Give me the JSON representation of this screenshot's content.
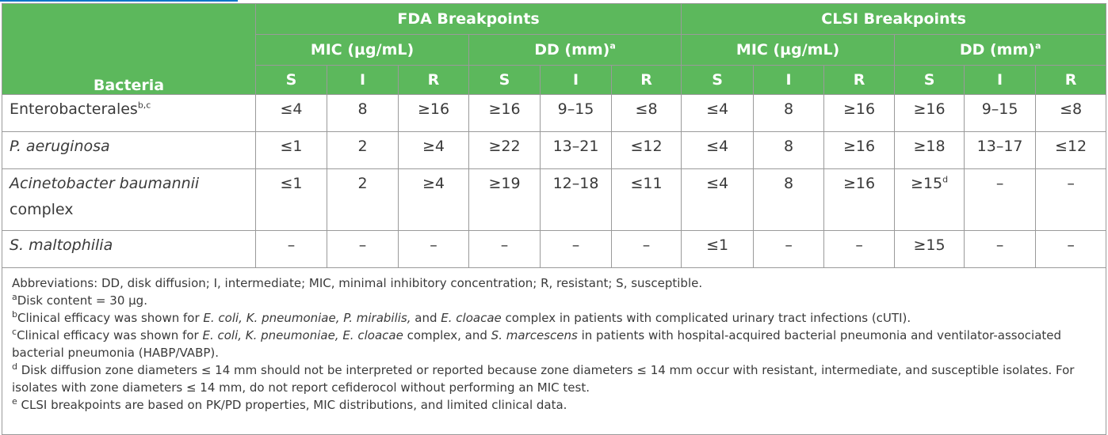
{
  "header": {
    "group_fda": "FDA Breakpoints",
    "group_clsi": "CLSI Breakpoints",
    "mic": "MIC (µg/mL)",
    "dd": "DD (mm)",
    "dd_sup": "a",
    "bacteria": "Bacteria",
    "s": "S",
    "i": "I",
    "r": "R"
  },
  "rows": [
    {
      "name": "Enterobacterales",
      "sup": "b,c",
      "vals": [
        "≤4",
        "8",
        "≥16",
        "≥16",
        "9–15",
        "≤8",
        "≤4",
        "8",
        "≥16",
        "≥16",
        "9–15",
        "≤8"
      ]
    },
    {
      "name": "P. aeruginosa",
      "vals": [
        "≤1",
        "2",
        "≥4",
        "≥22",
        "13–21",
        "≤12",
        "≤4",
        "8",
        "≥16",
        "≥18",
        "13–17",
        "≤12"
      ]
    },
    {
      "name": "Acinetobacter baumannii",
      "name2": "complex",
      "vals": [
        "≤1",
        "2",
        "≥4",
        "≥19",
        "12–18",
        "≤11",
        "≤4",
        "8",
        "≥16",
        "≥15",
        "–",
        "–"
      ],
      "sup9": "d"
    },
    {
      "name": "S. maltophilia",
      "vals": [
        "–",
        "–",
        "–",
        "–",
        "–",
        "–",
        "≤1",
        "–",
        "–",
        "≥15",
        "–",
        "–"
      ]
    }
  ],
  "footnotes": {
    "abbrev": "Abbreviations: DD, disk diffusion; I, intermediate; MIC, minimal inhibitory concentration; R, resistant; S, susceptible.",
    "a_mark": "a",
    "a_text": "Disk content = 30 µg.",
    "b_mark": "b",
    "b_1": "Clinical efficacy was shown for ",
    "b_2": "E. coli, K. pneumoniae, P. mirabilis,",
    "b_3": " and ",
    "b_4": "E. cloacae",
    "b_5": " complex in patients with complicated urinary tract infections (cUTI).",
    "c_mark": "c",
    "c_1": "Clinical efficacy was shown for ",
    "c_2": "E. coli, K. pneumoniae, E. cloacae",
    "c_3": " complex, and ",
    "c_4": "S. marcescens",
    "c_5": " in patients with hospital-acquired bacterial pneumonia and ventilator-associated bacterial pneumonia (HABP/VABP).",
    "d_mark": "d",
    "d_text": " Disk diffusion zone diameters ≤ 14 mm should not be interpreted or reported because zone diameters ≤ 14 mm occur with resistant, intermediate, and susceptible isolates. For isolates with zone diameters ≤ 14 mm, do not report cefiderocol without performing an MIC test.",
    "e_mark": "e",
    "e_text": " CLSI breakpoints are based on PK/PD properties, MIC distributions, and limited clinical data."
  },
  "colors": {
    "header_green": "#5cb85c",
    "grid": "#9a9a9a",
    "text": "#3a3a3a",
    "accent_blue": "#0b74c9"
  }
}
